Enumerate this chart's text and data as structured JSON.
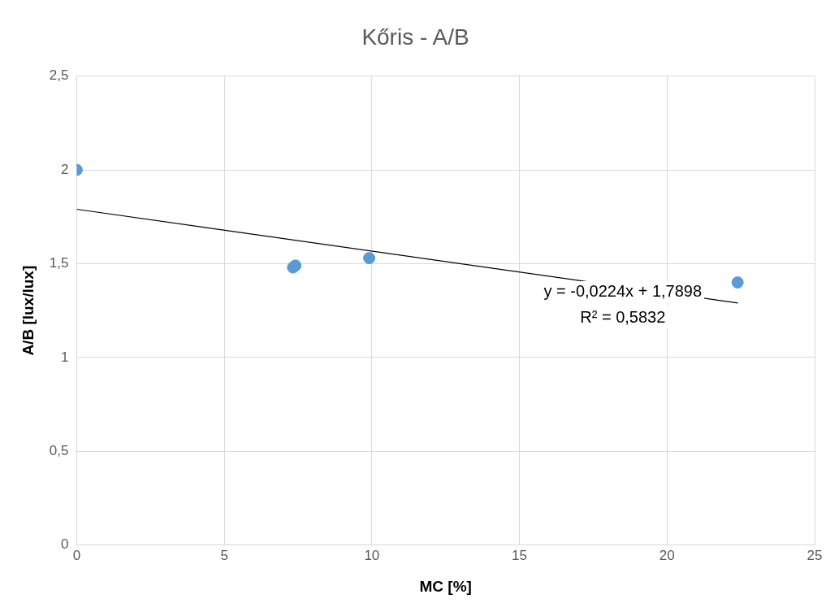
{
  "chart_data": {
    "type": "scatter",
    "title": "Kőris - A/B",
    "xlabel": "MC [%]",
    "ylabel": "A/B [lux/lux]",
    "series": [
      {
        "color": "#5b9bd5",
        "x": [
          0,
          7.33,
          7.41,
          9.91,
          22.39
        ],
        "values": [
          2.0,
          1.48,
          1.49,
          1.53,
          1.4
        ],
        "marker": "circle"
      },
      {
        "type": "line",
        "color": "#000000",
        "x": [
          0,
          22.4
        ],
        "values": [
          1.79,
          1.29
        ],
        "marker": "none",
        "line_style": "solid"
      }
    ],
    "annotations": [
      "y = -0,0224x + 1,7898",
      "R² = 0,5832"
    ],
    "xlim": [
      0,
      25
    ],
    "xticks": [
      0,
      5,
      10,
      15,
      20,
      25
    ],
    "ylim": [
      0,
      2.5
    ],
    "yticks": [
      0,
      {
        "value": 0.5,
        "label": "0,5"
      },
      1,
      {
        "value": 1.5,
        "label": "1,5"
      },
      2,
      {
        "value": 2.5,
        "label": "2,5"
      }
    ],
    "grid": true,
    "legend": false
  }
}
